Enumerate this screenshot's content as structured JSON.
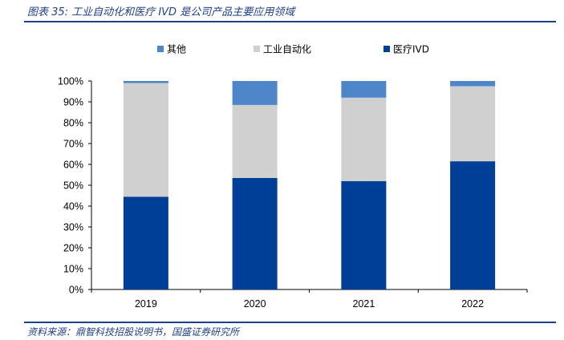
{
  "header": {
    "title": "图表 35: 工业自动化和医疗 IVD 是公司产品主要应用领域"
  },
  "footer": {
    "source": "资料来源：鼎智科技招股说明书，国盛证券研究所"
  },
  "chart_data": {
    "type": "bar",
    "stacked": true,
    "categories": [
      "2019",
      "2020",
      "2021",
      "2022"
    ],
    "series": [
      {
        "name": "医疗IVD",
        "color": "#003f98",
        "values": [
          0.445,
          0.535,
          0.52,
          0.615
        ]
      },
      {
        "name": "工业自动化",
        "color": "#d0d0d0",
        "values": [
          0.545,
          0.35,
          0.4,
          0.36
        ]
      },
      {
        "name": "其他",
        "color": "#4f86c9",
        "values": [
          0.01,
          0.115,
          0.08,
          0.025
        ]
      }
    ],
    "ylim": [
      0,
      1
    ],
    "yticks": [
      "0%",
      "10%",
      "20%",
      "30%",
      "40%",
      "50%",
      "60%",
      "70%",
      "80%",
      "90%",
      "100%"
    ],
    "legend_order": [
      2,
      1,
      0
    ],
    "legend_position": "top",
    "grid": false
  }
}
